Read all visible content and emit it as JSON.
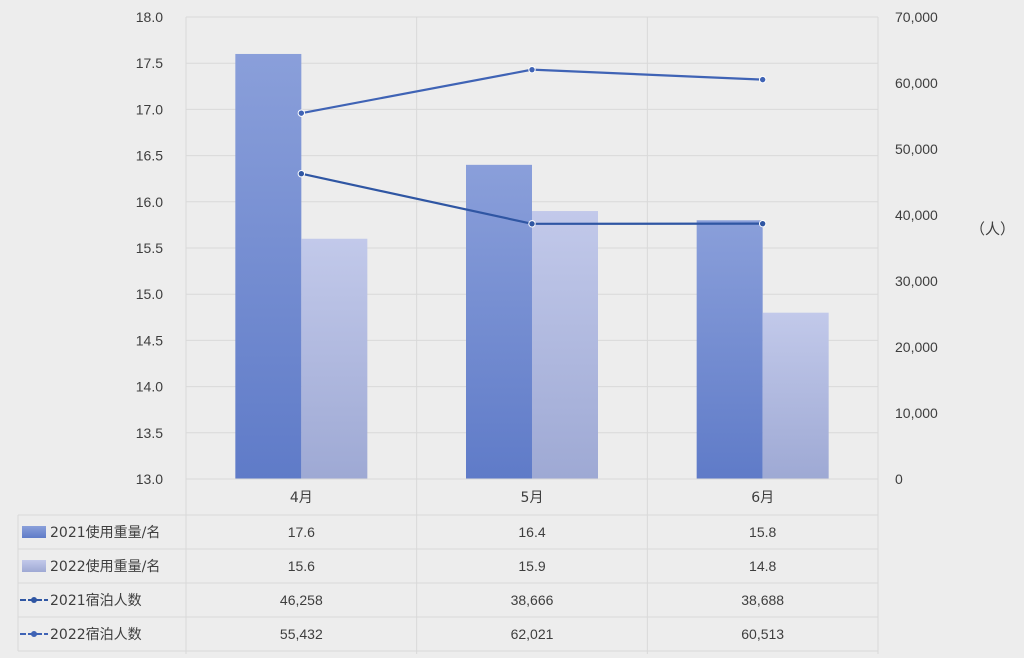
{
  "chart_data": {
    "type": "bar",
    "categories": [
      "4月",
      "5月",
      "6月"
    ],
    "y_left": {
      "min": 13.0,
      "max": 18.0,
      "step": 0.5
    },
    "y_right": {
      "min": 0,
      "max": 70000,
      "step": 10000,
      "unit_label": "（人）"
    },
    "series": [
      {
        "name": "2021使用重量/名",
        "type": "bar",
        "axis": "left",
        "color": "#6b86cf",
        "values": [
          17.6,
          16.4,
          15.8
        ],
        "display": [
          "17.6",
          "16.4",
          "15.8"
        ]
      },
      {
        "name": "2022使用重量/名",
        "type": "bar",
        "axis": "left",
        "color": "#b3bde3",
        "values": [
          15.6,
          15.9,
          14.8
        ],
        "display": [
          "15.6",
          "15.9",
          "14.8"
        ]
      },
      {
        "name": "2021宿泊人数",
        "type": "line",
        "axis": "right",
        "color": "#2f56a3",
        "values": [
          46258,
          38666,
          38688
        ],
        "display": [
          "46,258",
          "38,666",
          "38,688"
        ]
      },
      {
        "name": "2022宿泊人数",
        "type": "line",
        "axis": "right",
        "color": "#3f63b5",
        "values": [
          55432,
          62021,
          60513
        ],
        "display": [
          "55,432",
          "62,021",
          "60,513"
        ]
      }
    ],
    "y_left_ticks": [
      "13.0",
      "13.5",
      "14.0",
      "14.5",
      "15.0",
      "15.5",
      "16.0",
      "16.5",
      "17.0",
      "17.5",
      "18.0"
    ],
    "y_right_ticks": [
      "0",
      "10,000",
      "20,000",
      "30,000",
      "40,000",
      "50,000",
      "60,000",
      "70,000"
    ],
    "grid": true,
    "data_table": true
  }
}
